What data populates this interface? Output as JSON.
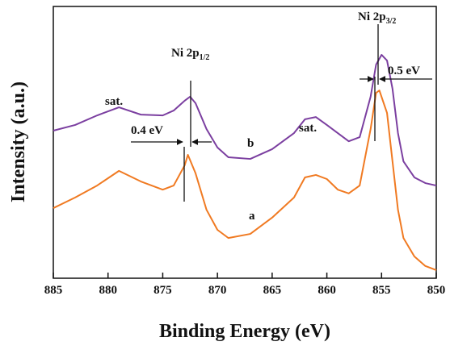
{
  "chart_data": {
    "type": "line",
    "xlabel": "Binding Energy (eV)",
    "ylabel": "Intensity (a.u.)",
    "xlim": [
      885,
      850
    ],
    "ylim": [
      0,
      100
    ],
    "xticks": [
      885,
      880,
      875,
      870,
      865,
      860,
      855,
      850
    ],
    "series": [
      {
        "name": "b",
        "color": "#7b3fa0",
        "x": [
          885,
          883,
          881,
          879,
          877,
          875,
          874,
          873,
          872.5,
          872,
          871,
          870,
          869,
          867,
          865,
          863,
          862,
          861,
          860,
          859,
          858,
          857,
          856,
          855.5,
          855,
          854.5,
          854,
          853.5,
          853,
          852,
          851,
          850
        ],
        "values": [
          54.3,
          56.4,
          59.9,
          62.9,
          60.2,
          59.9,
          61.7,
          65.3,
          66.8,
          64.4,
          54.9,
          48.1,
          44.5,
          43.9,
          47.5,
          53.4,
          58.5,
          59.3,
          56.4,
          53.4,
          50.4,
          51.9,
          66.8,
          78.6,
          82.2,
          80.1,
          69.7,
          53.4,
          43.0,
          37.1,
          35.0,
          34.1
        ]
      },
      {
        "name": "a",
        "color": "#f07a22",
        "x": [
          885,
          883,
          881,
          879,
          877,
          875,
          874,
          873,
          872.7,
          872,
          871,
          870,
          869,
          867,
          865,
          863,
          862,
          861,
          860,
          859,
          858,
          857,
          856,
          855.5,
          855.2,
          854.5,
          854,
          853.5,
          853,
          852,
          851,
          850
        ],
        "values": [
          25.8,
          29.7,
          34.1,
          39.5,
          35.6,
          32.6,
          34.1,
          41.5,
          45.4,
          38.6,
          25.2,
          17.8,
          14.8,
          16.3,
          22.3,
          29.7,
          37.1,
          38.0,
          36.5,
          32.6,
          31.2,
          34.1,
          54.9,
          68.2,
          69.1,
          60.8,
          43.0,
          25.2,
          14.8,
          8.0,
          4.5,
          3.0
        ]
      }
    ],
    "annotations": [
      {
        "text": "sat."
      },
      {
        "text": "sat."
      },
      {
        "text": "Ni 2p",
        "sub": "1/2"
      },
      {
        "text": "Ni 2p",
        "sub": "3/2"
      },
      {
        "text": "0.4 eV"
      },
      {
        "text": "0.5 eV"
      }
    ]
  }
}
